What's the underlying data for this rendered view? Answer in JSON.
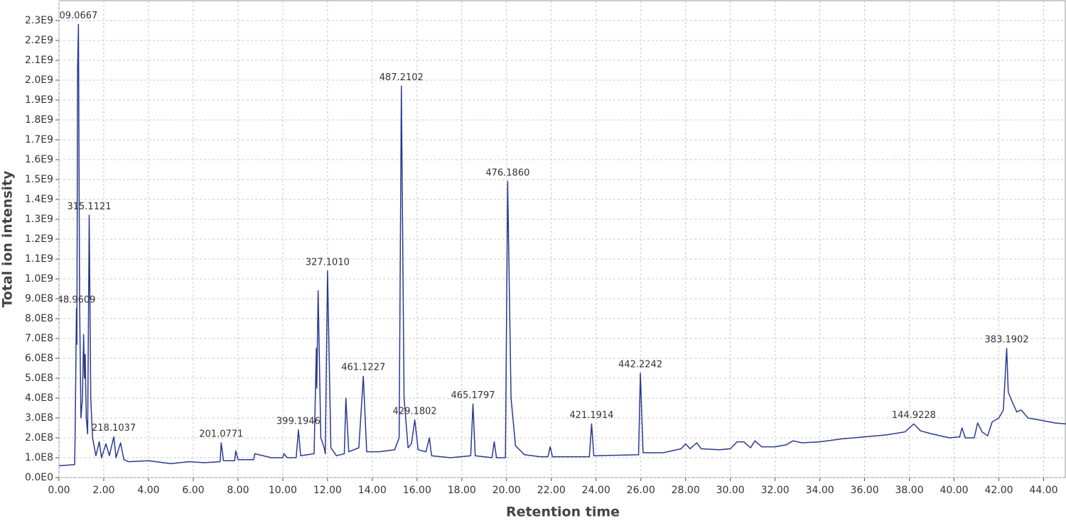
{
  "chart_data": {
    "type": "line",
    "x_label": "Retention time",
    "y_label": "Total ion intensity",
    "grid": true,
    "xlim": [
      0,
      45
    ],
    "ylim": [
      0,
      2400000000.0
    ],
    "xticks": [
      {
        "value": 0,
        "label": "0.00"
      },
      {
        "value": 2,
        "label": "2.00"
      },
      {
        "value": 4,
        "label": "4.00"
      },
      {
        "value": 6,
        "label": "6.00"
      },
      {
        "value": 8,
        "label": "8.00"
      },
      {
        "value": 10,
        "label": "10.00"
      },
      {
        "value": 12,
        "label": "12.00"
      },
      {
        "value": 14,
        "label": "14.00"
      },
      {
        "value": 16,
        "label": "16.00"
      },
      {
        "value": 18,
        "label": "18.00"
      },
      {
        "value": 20,
        "label": "20.00"
      },
      {
        "value": 22,
        "label": "22.00"
      },
      {
        "value": 24,
        "label": "24.00"
      },
      {
        "value": 26,
        "label": "26.00"
      },
      {
        "value": 28,
        "label": "28.00"
      },
      {
        "value": 30,
        "label": "30.00"
      },
      {
        "value": 32,
        "label": "32.00"
      },
      {
        "value": 34,
        "label": "34.00"
      },
      {
        "value": 36,
        "label": "36.00"
      },
      {
        "value": 38,
        "label": "38.00"
      },
      {
        "value": 40,
        "label": "40.00"
      },
      {
        "value": 42,
        "label": "42.00"
      },
      {
        "value": 44,
        "label": "44.00"
      }
    ],
    "yticks": [
      {
        "value": 0,
        "label": "0.0E0"
      },
      {
        "value": 100000000.0,
        "label": "1.0E8"
      },
      {
        "value": 200000000.0,
        "label": "2.0E8"
      },
      {
        "value": 300000000.0,
        "label": "3.0E8"
      },
      {
        "value": 400000000.0,
        "label": "4.0E8"
      },
      {
        "value": 500000000.0,
        "label": "5.0E8"
      },
      {
        "value": 600000000.0,
        "label": "6.0E8"
      },
      {
        "value": 700000000.0,
        "label": "7.0E8"
      },
      {
        "value": 800000000.0,
        "label": "8.0E8"
      },
      {
        "value": 900000000.0,
        "label": "9.0E8"
      },
      {
        "value": 1000000000.0,
        "label": "1.0E9"
      },
      {
        "value": 1100000000.0,
        "label": "1.1E9"
      },
      {
        "value": 1200000000.0,
        "label": "1.2E9"
      },
      {
        "value": 1300000000.0,
        "label": "1.3E9"
      },
      {
        "value": 1400000000.0,
        "label": "1.4E9"
      },
      {
        "value": 1500000000.0,
        "label": "1.5E9"
      },
      {
        "value": 1600000000.0,
        "label": "1.6E9"
      },
      {
        "value": 1700000000.0,
        "label": "1.7E9"
      },
      {
        "value": 1800000000.0,
        "label": "1.8E9"
      },
      {
        "value": 1900000000.0,
        "label": "1.9E9"
      },
      {
        "value": 2000000000.0,
        "label": "2.0E9"
      },
      {
        "value": 2100000000.0,
        "label": "2.1E9"
      },
      {
        "value": 2200000000.0,
        "label": "2.2E9"
      },
      {
        "value": 2300000000.0,
        "label": "2.3E9"
      }
    ],
    "color": "#2b3a8f",
    "x": [
      0.0,
      0.7,
      0.72,
      0.78,
      0.8,
      0.83,
      0.87,
      0.92,
      0.98,
      1.05,
      1.1,
      1.14,
      1.17,
      1.22,
      1.28,
      1.35,
      1.42,
      1.5,
      1.65,
      1.8,
      1.9,
      2.1,
      2.25,
      2.45,
      2.55,
      2.75,
      2.9,
      3.1,
      4.0,
      5.0,
      5.8,
      6.5,
      7.2,
      7.25,
      7.35,
      7.85,
      7.9,
      8.0,
      8.7,
      8.75,
      9.5,
      10.0,
      10.05,
      10.2,
      10.6,
      10.7,
      10.8,
      11.4,
      11.5,
      11.52,
      11.58,
      11.7,
      11.85,
      11.9,
      12.0,
      12.15,
      12.4,
      12.75,
      12.82,
      12.95,
      13.4,
      13.6,
      13.75,
      14.3,
      15.0,
      15.2,
      15.3,
      15.42,
      15.6,
      15.75,
      15.9,
      16.05,
      16.4,
      16.55,
      16.65,
      17.5,
      18.4,
      18.5,
      18.6,
      19.35,
      19.45,
      19.55,
      19.95,
      20.05,
      20.2,
      20.4,
      20.8,
      21.5,
      21.85,
      21.95,
      22.05,
      23.7,
      23.8,
      23.9,
      25.9,
      25.98,
      26.1,
      27.0,
      27.8,
      28.0,
      28.2,
      28.5,
      28.7,
      29.5,
      30.0,
      30.3,
      30.6,
      30.9,
      31.1,
      31.4,
      32.0,
      32.5,
      32.8,
      33.2,
      34.0,
      35.0,
      36.0,
      37.0,
      37.8,
      38.2,
      38.5,
      39.0,
      39.8,
      40.25,
      40.35,
      40.5,
      40.9,
      41.05,
      41.25,
      41.5,
      41.7,
      42.0,
      42.2,
      42.35,
      42.42,
      42.6,
      42.8,
      43.0,
      43.3,
      43.8,
      44.5,
      45.0
    ],
    "values": [
      60000000.0,
      65000000.0,
      200000000.0,
      850000000.0,
      670000000.0,
      2050000000.0,
      2280000000.0,
      900000000.0,
      300000000.0,
      400000000.0,
      720000000.0,
      500000000.0,
      620000000.0,
      300000000.0,
      220000000.0,
      1320000000.0,
      400000000.0,
      200000000.0,
      110000000.0,
      180000000.0,
      100000000.0,
      170000000.0,
      110000000.0,
      205000000.0,
      100000000.0,
      175000000.0,
      90000000.0,
      80000000.0,
      85000000.0,
      70000000.0,
      80000000.0,
      75000000.0,
      80000000.0,
      175000000.0,
      85000000.0,
      85000000.0,
      135000000.0,
      90000000.0,
      90000000.0,
      120000000.0,
      100000000.0,
      100000000.0,
      120000000.0,
      100000000.0,
      100000000.0,
      240000000.0,
      110000000.0,
      120000000.0,
      650000000.0,
      450000000.0,
      940000000.0,
      200000000.0,
      150000000.0,
      120000000.0,
      1040000000.0,
      150000000.0,
      110000000.0,
      120000000.0,
      400000000.0,
      130000000.0,
      150000000.0,
      510000000.0,
      130000000.0,
      130000000.0,
      140000000.0,
      200000000.0,
      1970000000.0,
      400000000.0,
      150000000.0,
      170000000.0,
      290000000.0,
      140000000.0,
      130000000.0,
      200000000.0,
      110000000.0,
      100000000.0,
      110000000.0,
      370000000.0,
      110000000.0,
      100000000.0,
      180000000.0,
      100000000.0,
      100000000.0,
      1490000000.0,
      400000000.0,
      160000000.0,
      115000000.0,
      105000000.0,
      105000000.0,
      155000000.0,
      105000000.0,
      105000000.0,
      270000000.0,
      110000000.0,
      115000000.0,
      525000000.0,
      125000000.0,
      125000000.0,
      145000000.0,
      170000000.0,
      145000000.0,
      175000000.0,
      145000000.0,
      140000000.0,
      145000000.0,
      180000000.0,
      180000000.0,
      150000000.0,
      185000000.0,
      155000000.0,
      155000000.0,
      165000000.0,
      185000000.0,
      175000000.0,
      180000000.0,
      195000000.0,
      205000000.0,
      215000000.0,
      230000000.0,
      270000000.0,
      235000000.0,
      220000000.0,
      200000000.0,
      205000000.0,
      250000000.0,
      200000000.0,
      200000000.0,
      275000000.0,
      230000000.0,
      210000000.0,
      280000000.0,
      300000000.0,
      340000000.0,
      650000000.0,
      430000000.0,
      380000000.0,
      330000000.0,
      340000000.0,
      300000000.0,
      290000000.0,
      275000000.0,
      270000000.0
    ],
    "annotations": [
      {
        "text": "09.0667",
        "x": 0.87,
        "y": 2280000000.0
      },
      {
        "text": "48.9609",
        "x": 0.78,
        "y": 850000000.0
      },
      {
        "text": "315.1121",
        "x": 1.35,
        "y": 1320000000.0
      },
      {
        "text": "218.1037",
        "x": 2.45,
        "y": 205000000.0
      },
      {
        "text": "201.0771",
        "x": 7.25,
        "y": 175000000.0
      },
      {
        "text": "399.1946",
        "x": 10.7,
        "y": 240000000.0
      },
      {
        "text": "327.1010",
        "x": 12.0,
        "y": 1040000000.0
      },
      {
        "text": "461.1227",
        "x": 13.6,
        "y": 510000000.0
      },
      {
        "text": "487.2102",
        "x": 15.3,
        "y": 1970000000.0
      },
      {
        "text": "429.1802",
        "x": 15.9,
        "y": 290000000.0
      },
      {
        "text": "465.1797",
        "x": 18.5,
        "y": 370000000.0
      },
      {
        "text": "476.1860",
        "x": 20.05,
        "y": 1490000000.0
      },
      {
        "text": "421.1914",
        "x": 23.8,
        "y": 270000000.0
      },
      {
        "text": "442.2242",
        "x": 25.98,
        "y": 525000000.0
      },
      {
        "text": "144.9228",
        "x": 38.2,
        "y": 270000000.0
      },
      {
        "text": "383.1902",
        "x": 42.35,
        "y": 650000000.0
      }
    ]
  }
}
